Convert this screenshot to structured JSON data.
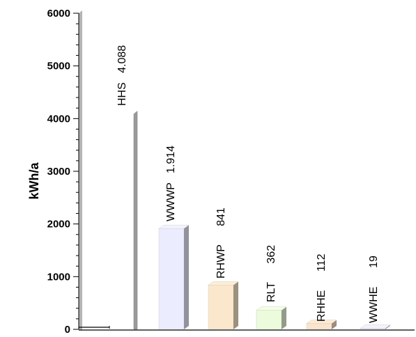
{
  "chart_data": {
    "type": "bar",
    "ylabel": "kWh/a",
    "ylim": [
      0,
      6000
    ],
    "yticks": [
      0,
      1000,
      2000,
      3000,
      4000,
      5000,
      6000
    ],
    "ytick_labels": [
      "0",
      "1000",
      "2000",
      "3000",
      "4000",
      "5000",
      "6000"
    ],
    "grid": false,
    "bars": [
      {
        "category": "HHS",
        "value": 4088,
        "value_label": "4.088",
        "label": "HHS   4.088",
        "color": "#9a9a9a"
      },
      {
        "category": "WWWP",
        "value": 1914,
        "value_label": "1.914",
        "label": "WWWP   1.914",
        "color": "#ececff"
      },
      {
        "category": "RHWP",
        "value": 841,
        "value_label": "841",
        "label": "RHWP      841",
        "color": "#fbe8cc"
      },
      {
        "category": "RLT",
        "value": 362,
        "value_label": "362",
        "label": "RLT      362",
        "color": "#ecfbdc"
      },
      {
        "category": "RHHE",
        "value": 112,
        "value_label": "112",
        "label": "RHHE      112",
        "color": "#fbe4cc"
      },
      {
        "category": "WWHE",
        "value": 19,
        "value_label": "19",
        "label": "WWHE      19",
        "color": "#ececff"
      }
    ]
  }
}
